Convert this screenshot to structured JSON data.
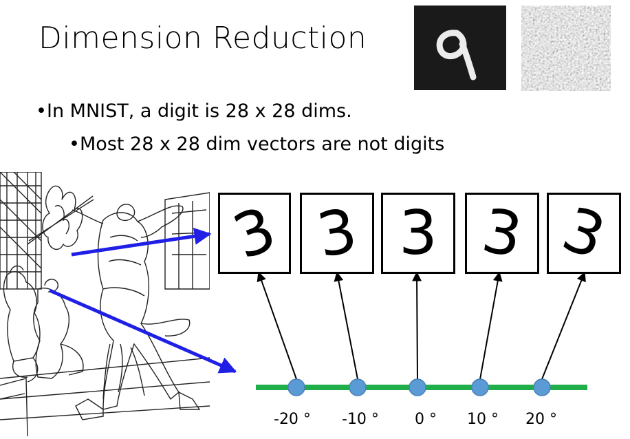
{
  "slide": {
    "title": "Dimension Reduction",
    "bullet_1": "In MNIST, a digit is 28 x 28 dims.",
    "bullet_2": "Most 28 x 28 dim vectors are not digits"
  },
  "images": {
    "mnist_digit": "9"
  },
  "rotation_digits": [
    {
      "digit": "3",
      "angle": -20,
      "label": "-20 °"
    },
    {
      "digit": "3",
      "angle": -10,
      "label": "-10 °"
    },
    {
      "digit": "3",
      "angle": 0,
      "label": "0 °"
    },
    {
      "digit": "3",
      "angle": 10,
      "label": "10 °"
    },
    {
      "digit": "3",
      "angle": 20,
      "label": "20 °"
    }
  ],
  "colors": {
    "axis_line": "#1fae4a",
    "point_fill": "#5b9bd5",
    "arrow_blue": "#1f1fe6"
  }
}
